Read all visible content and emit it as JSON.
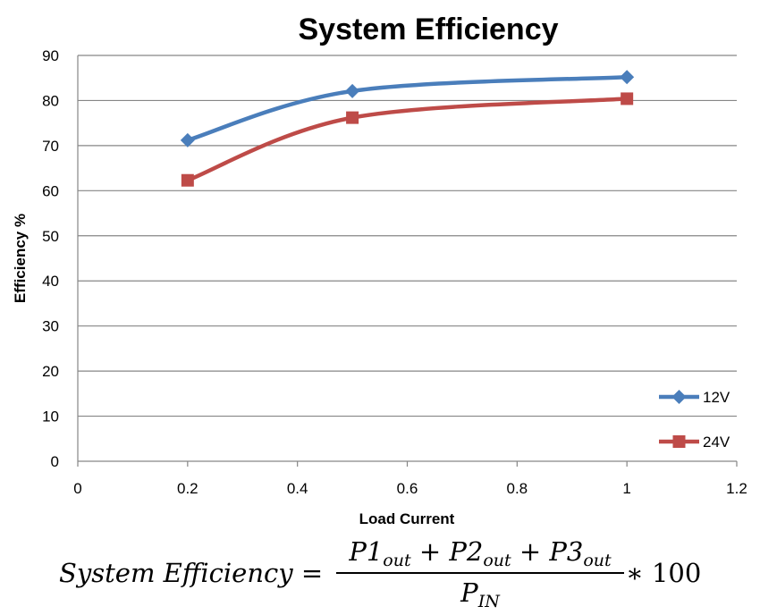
{
  "chart_data": {
    "type": "line",
    "title": "System Efficiency",
    "xlabel": "Load Current",
    "ylabel": "Efficiency %",
    "xlim": [
      0,
      1.2
    ],
    "ylim": [
      0,
      90
    ],
    "xticks": [
      0,
      0.2,
      0.4,
      0.6,
      0.8,
      1,
      1.2
    ],
    "yticks": [
      0,
      10,
      20,
      30,
      40,
      50,
      60,
      70,
      80,
      90
    ],
    "grid": "horizontal",
    "legend_position": "bottom-right",
    "series": [
      {
        "name": "12V",
        "color": "#4a7ebb",
        "marker": "diamond",
        "x": [
          0.2,
          0.5,
          1.0
        ],
        "y": [
          71.2,
          82.1,
          85.2
        ]
      },
      {
        "name": "24V",
        "color": "#be4b48",
        "marker": "square",
        "x": [
          0.2,
          0.5,
          1.0
        ],
        "y": [
          62.3,
          76.2,
          80.4
        ]
      }
    ]
  },
  "formula": {
    "lhs": "System Efficiency",
    "equals": "=",
    "numerator": [
      {
        "base": "P1",
        "sub": "out"
      },
      {
        "op": "+"
      },
      {
        "base": "P2",
        "sub": "out"
      },
      {
        "op": "+"
      },
      {
        "base": "P3",
        "sub": "out"
      }
    ],
    "denominator": {
      "base": "P",
      "sub": "IN"
    },
    "times": "∗",
    "factor": "100"
  }
}
